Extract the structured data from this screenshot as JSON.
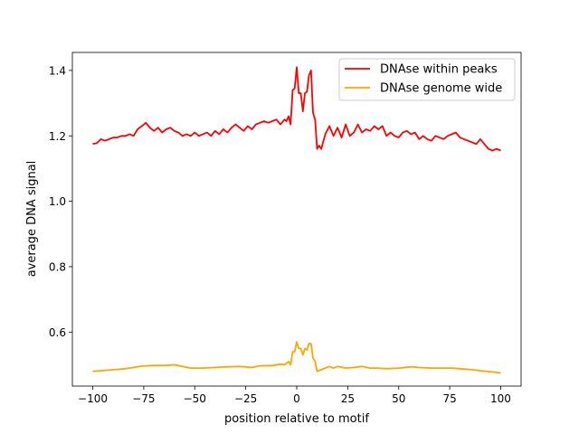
{
  "chart_data": {
    "type": "line",
    "title": "",
    "xlabel": "position relative to motif",
    "ylabel": "average DNA signal",
    "xlim": [
      -110,
      110
    ],
    "ylim": [
      0.435,
      1.455
    ],
    "xticks": [
      -100,
      -75,
      -50,
      -25,
      0,
      25,
      50,
      75,
      100
    ],
    "xtick_labels": [
      "−100",
      "−75",
      "−50",
      "−25",
      "0",
      "25",
      "50",
      "75",
      "100"
    ],
    "yticks": [
      0.6,
      0.8,
      1.0,
      1.2,
      1.4
    ],
    "ytick_labels": [
      "0.6",
      "0.8",
      "1.0",
      "1.2",
      "1.4"
    ],
    "grid": false,
    "legend_position": "top-right",
    "series": [
      {
        "name": "DNAse within peaks",
        "color": "#ff0000",
        "x": [
          -100,
          -98,
          -96,
          -94,
          -92,
          -90,
          -88,
          -86,
          -84,
          -82,
          -80,
          -78,
          -76,
          -74,
          -72,
          -70,
          -68,
          -66,
          -64,
          -62,
          -60,
          -58,
          -56,
          -54,
          -52,
          -50,
          -48,
          -46,
          -44,
          -42,
          -40,
          -38,
          -36,
          -34,
          -32,
          -30,
          -28,
          -26,
          -24,
          -22,
          -20,
          -18,
          -16,
          -14,
          -12,
          -10,
          -8,
          -6,
          -5,
          -4,
          -3,
          -2,
          -1,
          0,
          1,
          2,
          3,
          4,
          5,
          6,
          7,
          8,
          9,
          10,
          11,
          12,
          14,
          16,
          18,
          20,
          22,
          24,
          26,
          28,
          30,
          32,
          34,
          36,
          38,
          40,
          42,
          44,
          46,
          48,
          50,
          52,
          54,
          56,
          58,
          60,
          62,
          64,
          66,
          68,
          70,
          72,
          74,
          76,
          78,
          80,
          82,
          84,
          86,
          88,
          90,
          92,
          94,
          96,
          98,
          100
        ],
        "values": [
          1.175,
          1.178,
          1.19,
          1.185,
          1.19,
          1.195,
          1.195,
          1.2,
          1.2,
          1.205,
          1.2,
          1.22,
          1.23,
          1.24,
          1.225,
          1.215,
          1.225,
          1.21,
          1.22,
          1.225,
          1.215,
          1.21,
          1.2,
          1.205,
          1.2,
          1.21,
          1.2,
          1.205,
          1.21,
          1.2,
          1.215,
          1.205,
          1.22,
          1.21,
          1.225,
          1.235,
          1.225,
          1.215,
          1.23,
          1.22,
          1.235,
          1.24,
          1.245,
          1.24,
          1.245,
          1.25,
          1.235,
          1.25,
          1.245,
          1.26,
          1.235,
          1.34,
          1.345,
          1.41,
          1.33,
          1.33,
          1.275,
          1.33,
          1.335,
          1.385,
          1.4,
          1.27,
          1.25,
          1.16,
          1.17,
          1.16,
          1.205,
          1.23,
          1.2,
          1.225,
          1.195,
          1.235,
          1.2,
          1.21,
          1.235,
          1.21,
          1.22,
          1.215,
          1.23,
          1.22,
          1.23,
          1.2,
          1.21,
          1.2,
          1.195,
          1.21,
          1.215,
          1.205,
          1.21,
          1.19,
          1.2,
          1.19,
          1.185,
          1.2,
          1.195,
          1.19,
          1.2,
          1.205,
          1.21,
          1.195,
          1.19,
          1.185,
          1.18,
          1.175,
          1.19,
          1.175,
          1.16,
          1.155,
          1.16,
          1.155
        ]
      },
      {
        "name": "DNAse genome wide",
        "color": "#ffa500",
        "x": [
          -100,
          -96,
          -90,
          -84,
          -80,
          -76,
          -70,
          -64,
          -60,
          -56,
          -52,
          -46,
          -40,
          -34,
          -28,
          -22,
          -18,
          -12,
          -8,
          -6,
          -4,
          -3,
          -2,
          -1,
          0,
          1,
          2,
          3,
          4,
          5,
          6,
          7,
          8,
          9,
          10,
          12,
          14,
          16,
          18,
          20,
          24,
          28,
          32,
          36,
          40,
          44,
          50,
          56,
          60,
          66,
          70,
          76,
          80,
          86,
          90,
          96,
          100
        ],
        "values": [
          0.48,
          0.482,
          0.485,
          0.488,
          0.492,
          0.496,
          0.498,
          0.498,
          0.5,
          0.495,
          0.49,
          0.49,
          0.492,
          0.494,
          0.495,
          0.492,
          0.497,
          0.498,
          0.502,
          0.5,
          0.51,
          0.5,
          0.54,
          0.54,
          0.57,
          0.55,
          0.55,
          0.53,
          0.55,
          0.545,
          0.565,
          0.565,
          0.52,
          0.51,
          0.48,
          0.485,
          0.49,
          0.495,
          0.49,
          0.495,
          0.49,
          0.492,
          0.495,
          0.49,
          0.49,
          0.488,
          0.49,
          0.494,
          0.492,
          0.49,
          0.49,
          0.49,
          0.488,
          0.485,
          0.482,
          0.478,
          0.475
        ]
      }
    ]
  }
}
